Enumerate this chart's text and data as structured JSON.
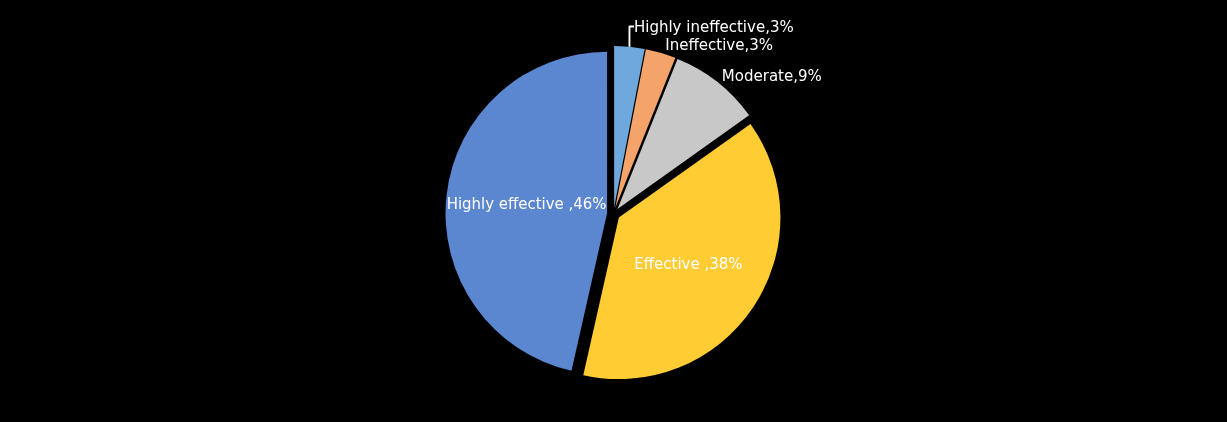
{
  "chart_data": {
    "type": "pie",
    "categories": [
      "Highly ineffective,3%",
      "Ineffective,3%",
      "Moderate,9%",
      "Effective ,38%",
      "Highly effective ,46%"
    ],
    "values": [
      3,
      3,
      9,
      38,
      46
    ],
    "colors": [
      "#6fa8dc",
      "#f4a46a",
      "#c8c8c8",
      "#ffcc33",
      "#5b86d0"
    ],
    "legend": false
  }
}
